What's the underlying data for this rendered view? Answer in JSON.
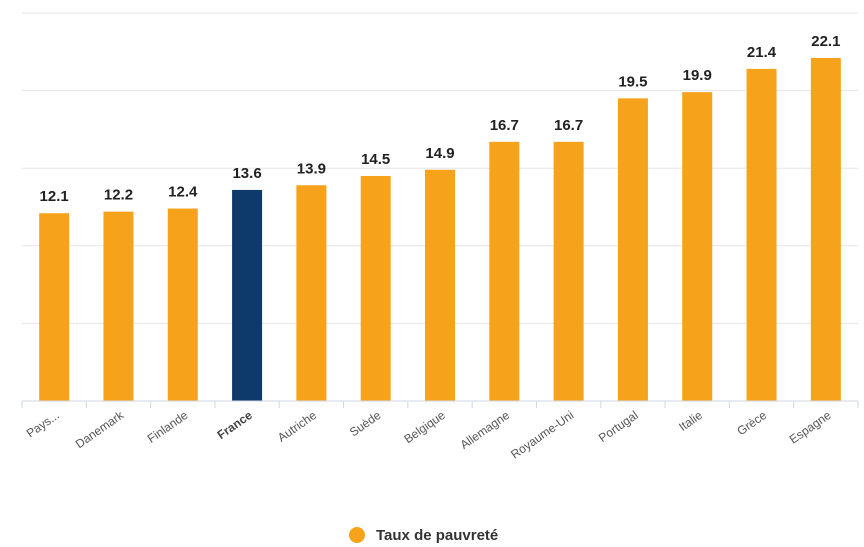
{
  "chart_data": {
    "type": "bar",
    "title": "",
    "xlabel": "",
    "ylabel": "",
    "ylim": [
      0,
      25
    ],
    "grid": true,
    "legend_position": "bottom-center",
    "categories": [
      "Pays...",
      "Danemark",
      "Finlande",
      "France",
      "Autriche",
      "Suède",
      "Belgique",
      "Allemagne",
      "Royaume-Uni",
      "Portugal",
      "Italie",
      "Grèce",
      "Espagne"
    ],
    "series": [
      {
        "name": "Taux de pauvreté",
        "values": [
          12.1,
          12.2,
          12.4,
          13.6,
          13.9,
          14.5,
          14.9,
          16.7,
          16.7,
          19.5,
          19.9,
          21.4,
          22.1
        ]
      }
    ],
    "highlight_category": "France",
    "colors": {
      "bar": "#f7a21b",
      "highlight": "#0e3a6b"
    }
  }
}
